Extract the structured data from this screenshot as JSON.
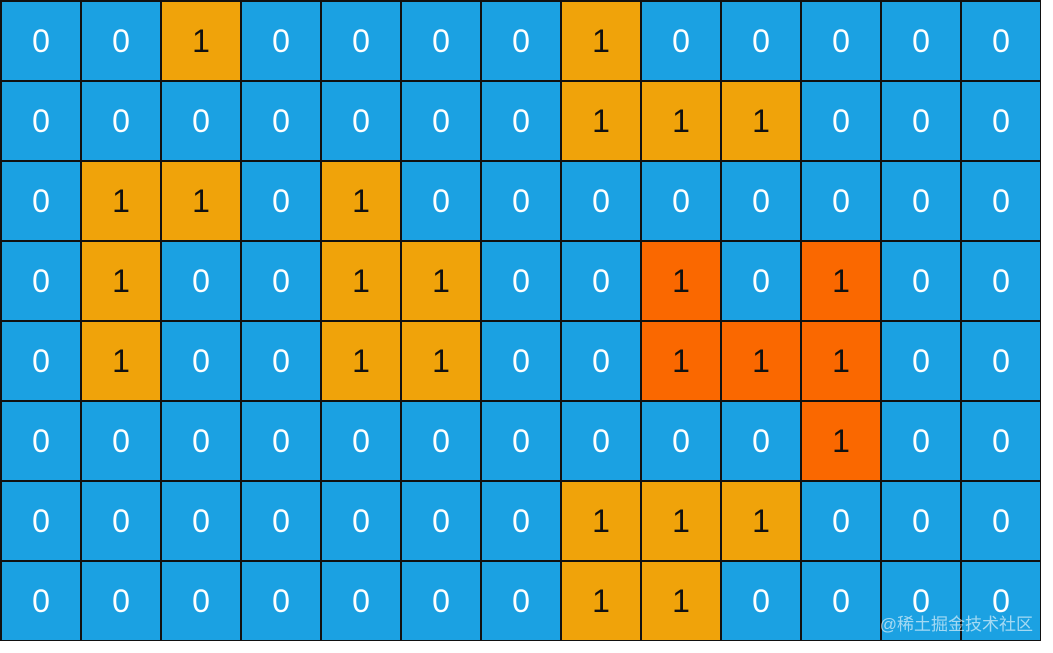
{
  "colors": {
    "water": "#1ba1e2",
    "land": "#f0a30a",
    "highlight": "#fa6800"
  },
  "grid": [
    [
      0,
      0,
      1,
      0,
      0,
      0,
      0,
      1,
      0,
      0,
      0,
      0,
      0
    ],
    [
      0,
      0,
      0,
      0,
      0,
      0,
      0,
      1,
      1,
      1,
      0,
      0,
      0
    ],
    [
      0,
      1,
      1,
      0,
      1,
      0,
      0,
      0,
      0,
      0,
      0,
      0,
      0
    ],
    [
      0,
      1,
      0,
      0,
      1,
      1,
      0,
      0,
      1,
      0,
      1,
      0,
      0
    ],
    [
      0,
      1,
      0,
      0,
      1,
      1,
      0,
      0,
      1,
      1,
      1,
      0,
      0
    ],
    [
      0,
      0,
      0,
      0,
      0,
      0,
      0,
      0,
      0,
      0,
      1,
      0,
      0
    ],
    [
      0,
      0,
      0,
      0,
      0,
      0,
      0,
      1,
      1,
      1,
      0,
      0,
      0
    ],
    [
      0,
      0,
      0,
      0,
      0,
      0,
      0,
      1,
      1,
      0,
      0,
      0,
      0
    ]
  ],
  "highlighted_cells": [
    [
      3,
      8
    ],
    [
      3,
      10
    ],
    [
      4,
      8
    ],
    [
      4,
      9
    ],
    [
      4,
      10
    ],
    [
      5,
      10
    ]
  ],
  "watermark": "@稀土掘金技术社区"
}
